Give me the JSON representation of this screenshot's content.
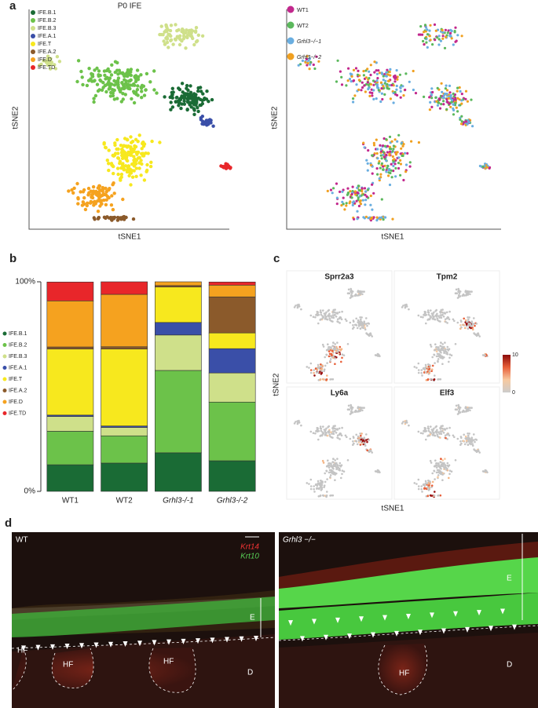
{
  "panel_a": {
    "label": "a",
    "title": "P0 IFE",
    "x_label": "tSNE1",
    "y_label": "tSNE2",
    "legend": [
      {
        "name": "IFE.B.1",
        "color": "#1a6b35"
      },
      {
        "name": "IFE.B.2",
        "color": "#6cc24a"
      },
      {
        "name": "IFE.B.3",
        "color": "#cfe08a"
      },
      {
        "name": "IFE.A.1",
        "color": "#3a4fa8"
      },
      {
        "name": "IFE.T",
        "color": "#f7e81e"
      },
      {
        "name": "IFE.A.2",
        "color": "#8b5a2b"
      },
      {
        "name": "IFE.D",
        "color": "#f5a21f"
      },
      {
        "name": "IFE.TD",
        "color": "#e8262a"
      }
    ],
    "sample_legend": [
      {
        "name": "WT1",
        "color": "#c2288d"
      },
      {
        "name": "WT2",
        "color": "#5bb85c"
      },
      {
        "name": "Grhl3−/−1",
        "color": "#6aaee0"
      },
      {
        "name": "Grhl3−/−2",
        "color": "#f0a020"
      }
    ],
    "x_label_2": "tSNE1",
    "y_label_2": "tSNE2"
  },
  "chart_data": {
    "type": "stacked_bar",
    "label": "b",
    "categories": [
      "WT1",
      "WT2",
      "Grhl3-/-1",
      "Grhl3-/-2"
    ],
    "series": [
      {
        "name": "IFE.B.1",
        "color": "#1a6b35",
        "values": [
          12.7,
          13.5,
          18.4,
          14.6
        ]
      },
      {
        "name": "IFE.B.2",
        "color": "#6cc24a",
        "values": [
          16,
          13,
          39.3,
          28
        ]
      },
      {
        "name": "IFE.B.3",
        "color": "#cfe08a",
        "values": [
          7,
          4,
          16.9,
          13.9
        ]
      },
      {
        "name": "IFE.A.1",
        "color": "#3a4fa8",
        "values": [
          0.7,
          0.7,
          6,
          11.6
        ]
      },
      {
        "name": "IFE.T",
        "color": "#f7e81e",
        "values": [
          31.5,
          36.7,
          16.9,
          7.5
        ]
      },
      {
        "name": "IFE.A.2",
        "color": "#8b5a2b",
        "values": [
          1,
          1.1,
          0.7,
          17.2
        ]
      },
      {
        "name": "IFE.D",
        "color": "#f5a21f",
        "values": [
          22,
          25,
          1.8,
          5.6
        ]
      },
      {
        "name": "IFE.TD",
        "color": "#e8262a",
        "values": [
          9,
          6,
          0,
          1.5
        ]
      }
    ],
    "ylim": [
      0,
      100
    ],
    "yticks": [
      {
        "value": 0,
        "label": "0%"
      },
      {
        "value": 100,
        "label": "100%"
      }
    ]
  },
  "panel_c": {
    "label": "c",
    "genes": [
      "Sprr2a3",
      "Tpm2",
      "Ly6a",
      "Elf3"
    ],
    "x_label": "tSNE1",
    "y_label": "tSNE2",
    "colorbar": {
      "ticks": [
        0,
        10
      ],
      "colors": [
        "#cccccc",
        "#f7c9a0",
        "#e8603a",
        "#8b0a0a"
      ]
    }
  },
  "panel_d": {
    "label": "d",
    "left": {
      "title": "WT",
      "marker1": "Krt14",
      "marker2": "Krt10",
      "E": "E",
      "HF": [
        "HF",
        "HF",
        "HF"
      ],
      "D": "D"
    },
    "right": {
      "title": "Grhl3 −/−",
      "E": "E",
      "HF": "HF",
      "D": "D"
    }
  }
}
